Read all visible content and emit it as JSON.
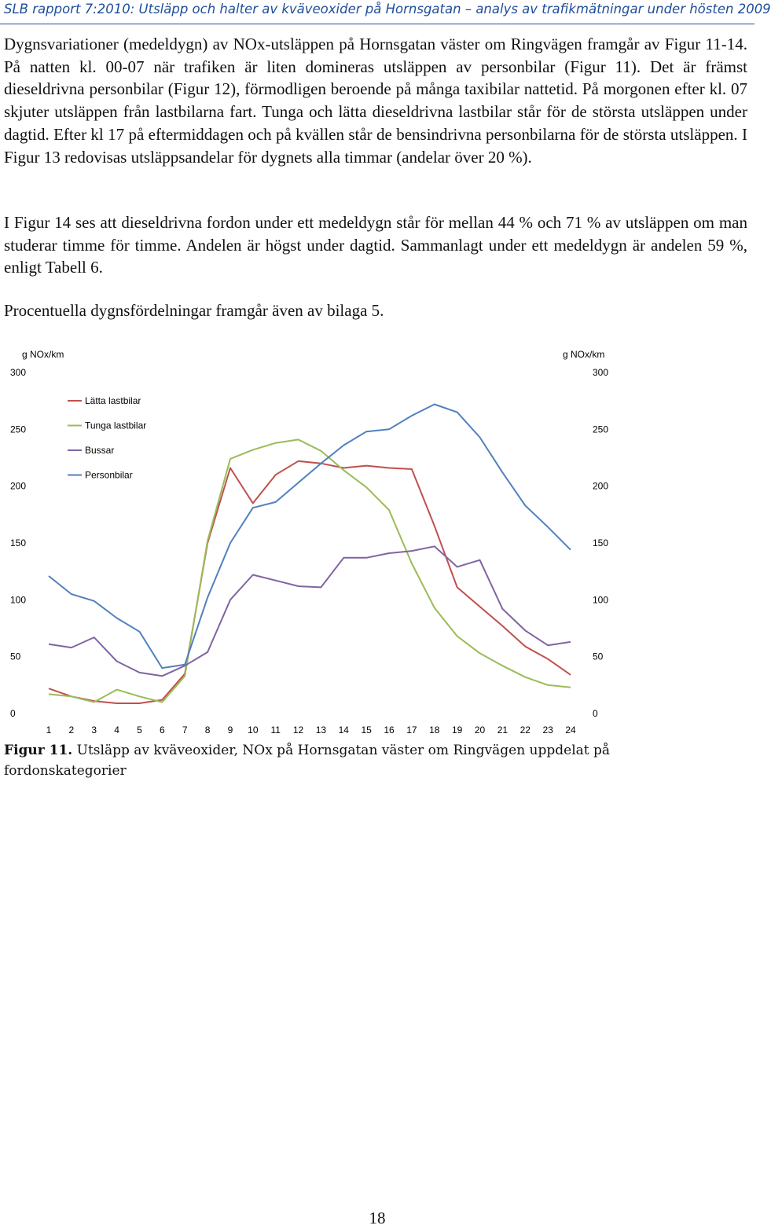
{
  "header": {
    "running_title": "SLB rapport 7:2010: Utsläpp och halter av kväveoxider på Hornsgatan – analys av trafikmätningar under hösten 2009",
    "color": "#1f4e9a"
  },
  "body": {
    "paragraphs": [
      "Dygnsvariationer (medeldygn) av NOx-utsläppen på Hornsgatan väster om Ringvägen framgår av Figur 11-14. På natten kl. 00-07 när trafiken är liten domineras utsläppen av personbilar (Figur 11). Det är främst dieseldrivna personbilar (Figur 12), förmodligen beroende på många taxibilar nattetid. På morgonen efter kl. 07 skjuter utsläppen från lastbilarna fart. Tunga och lätta dieseldrivna lastbilar står för de största utsläppen under dagtid. Efter kl 17 på eftermiddagen och på kvällen står de bensindrivna personbilarna för de största utsläppen. I Figur 13 redovisas utsläppsandelar för dygnets alla timmar (andelar över 20 %).",
      "I Figur 14 ses att dieseldrivna fordon under ett medeldygn står för mellan 44 % och 71 % av utsläppen om man studerar timme för timme. Andelen är högst under dagtid. Sammanlagt under ett medeldygn är andelen 59 %, enligt Tabell 6.",
      "Procentuella dygnsfördelningar framgår även av bilaga 5."
    ]
  },
  "figure": {
    "label": "Figur 11.",
    "caption": " Utsläpp av kväveoxider, NOx på Hornsgatan väster om Ringvägen uppdelat på fordonskategorier"
  },
  "chart_data": {
    "type": "line",
    "title": "",
    "xlabel": "",
    "ylabel_left": "g NOx/km",
    "ylabel_right": "g NOx/km",
    "ylim": [
      0,
      300
    ],
    "yticks": [
      0,
      50,
      100,
      150,
      200,
      250,
      300
    ],
    "grid": false,
    "legend_position": "top-left",
    "x": [
      "1",
      "2",
      "3",
      "4",
      "5",
      "6",
      "7",
      "8",
      "9",
      "10",
      "11",
      "12",
      "13",
      "14",
      "15",
      "16",
      "17",
      "18",
      "19",
      "20",
      "21",
      "22",
      "23",
      "24"
    ],
    "series": [
      {
        "name": "Lätta lastbilar",
        "color": "#c0504d",
        "values": [
          22,
          15,
          11,
          9,
          9,
          12,
          35,
          150,
          216,
          185,
          210,
          222,
          220,
          216,
          218,
          216,
          215,
          165,
          111,
          94,
          77,
          59,
          48,
          34
        ]
      },
      {
        "name": "Tunga lastbilar",
        "color": "#9bbb59",
        "values": [
          17,
          15,
          10,
          21,
          15,
          10,
          33,
          152,
          224,
          232,
          238,
          241,
          231,
          214,
          199,
          179,
          132,
          93,
          68,
          53,
          42,
          32,
          25,
          23
        ]
      },
      {
        "name": "Bussar",
        "color": "#8064a2",
        "values": [
          61,
          58,
          67,
          46,
          36,
          33,
          42,
          54,
          100,
          122,
          117,
          112,
          111,
          137,
          137,
          141,
          143,
          147,
          129,
          135,
          92,
          73,
          60,
          63
        ]
      },
      {
        "name": "Personbilar",
        "color": "#4f81bd",
        "values": [
          121,
          105,
          99,
          84,
          72,
          40,
          43,
          102,
          150,
          181,
          186,
          203,
          220,
          236,
          248,
          250,
          262,
          272,
          265,
          243,
          212,
          183,
          164,
          144
        ]
      }
    ]
  },
  "page": {
    "number": "18"
  }
}
